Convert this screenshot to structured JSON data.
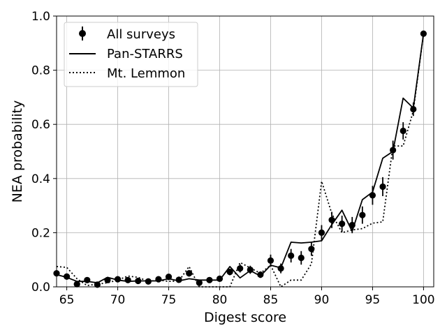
{
  "chart_data": {
    "type": "line",
    "xlabel": "Digest score",
    "ylabel": "NEA probability",
    "xlim": [
      64,
      101
    ],
    "ylim": [
      0,
      1.0
    ],
    "xticks": [
      65,
      70,
      75,
      80,
      85,
      90,
      95,
      100
    ],
    "yticks": [
      0.0,
      0.2,
      0.4,
      0.6,
      0.8,
      1.0
    ],
    "ytick_labels": [
      "0.0",
      "0.2",
      "0.4",
      "0.6",
      "0.8",
      "1.0"
    ],
    "grid": true,
    "legend": {
      "placement": "top-left",
      "entries": [
        "All surveys",
        "Pan-STARRS",
        "Mt. Lemmon"
      ]
    },
    "series": [
      {
        "name": "All surveys",
        "style": "points-with-errorbars",
        "color": "#000000",
        "x": [
          64,
          65,
          66,
          67,
          68,
          69,
          70,
          71,
          72,
          73,
          74,
          75,
          76,
          77,
          78,
          79,
          80,
          81,
          82,
          83,
          84,
          85,
          86,
          87,
          88,
          89,
          90,
          91,
          92,
          93,
          94,
          95,
          96,
          97,
          98,
          99,
          100
        ],
        "y": [
          0.05,
          0.038,
          0.01,
          0.025,
          0.008,
          0.025,
          0.028,
          0.025,
          0.022,
          0.02,
          0.028,
          0.037,
          0.026,
          0.05,
          0.015,
          0.025,
          0.03,
          0.055,
          0.068,
          0.063,
          0.045,
          0.097,
          0.068,
          0.115,
          0.107,
          0.14,
          0.2,
          0.247,
          0.233,
          0.228,
          0.265,
          0.338,
          0.37,
          0.505,
          0.576,
          0.656,
          0.935
        ],
        "yerr": [
          0.008,
          0.008,
          0.006,
          0.006,
          0.005,
          0.006,
          0.006,
          0.006,
          0.006,
          0.005,
          0.006,
          0.008,
          0.007,
          0.012,
          0.007,
          0.007,
          0.009,
          0.012,
          0.015,
          0.015,
          0.012,
          0.022,
          0.018,
          0.025,
          0.025,
          0.025,
          0.028,
          0.03,
          0.03,
          0.03,
          0.032,
          0.035,
          0.035,
          0.035,
          0.032,
          0.025,
          0.01
        ]
      },
      {
        "name": "Pan-STARRS",
        "style": "solid",
        "color": "#000000",
        "x": [
          64,
          65,
          66,
          67,
          68,
          69,
          70,
          71,
          72,
          73,
          74,
          75,
          76,
          77,
          78,
          79,
          80,
          81,
          82,
          83,
          84,
          85,
          86,
          87,
          88,
          89,
          90,
          91,
          92,
          93,
          94,
          95,
          96,
          97,
          98,
          99,
          100
        ],
        "y": [
          0.045,
          0.035,
          0.02,
          0.02,
          0.015,
          0.035,
          0.025,
          0.02,
          0.022,
          0.022,
          0.022,
          0.03,
          0.022,
          0.03,
          0.025,
          0.025,
          0.025,
          0.075,
          0.033,
          0.06,
          0.04,
          0.08,
          0.07,
          0.165,
          0.162,
          0.165,
          0.17,
          0.23,
          0.283,
          0.205,
          0.322,
          0.35,
          0.475,
          0.5,
          0.697,
          0.66,
          0.935
        ]
      },
      {
        "name": "Mt. Lemmon",
        "style": "dotted",
        "color": "#000000",
        "x": [
          64,
          65,
          66,
          67,
          68,
          69,
          70,
          71,
          72,
          73,
          74,
          75,
          76,
          77,
          78,
          79,
          80,
          81,
          82,
          83,
          84,
          85,
          86,
          87,
          88,
          89,
          90,
          91,
          92,
          93,
          94,
          95,
          96,
          97,
          98,
          99,
          100
        ],
        "y": [
          0.075,
          0.072,
          0.03,
          0.005,
          0.01,
          0.015,
          0.025,
          0.04,
          0.035,
          0.02,
          0.025,
          0.02,
          0.022,
          0.075,
          0.0,
          0.0,
          0.0,
          0.0,
          0.09,
          0.07,
          0.05,
          0.08,
          0.0,
          0.025,
          0.025,
          0.085,
          0.39,
          0.27,
          0.2,
          0.21,
          0.215,
          0.235,
          0.24,
          0.52,
          0.52,
          0.65,
          0.935
        ]
      }
    ]
  }
}
